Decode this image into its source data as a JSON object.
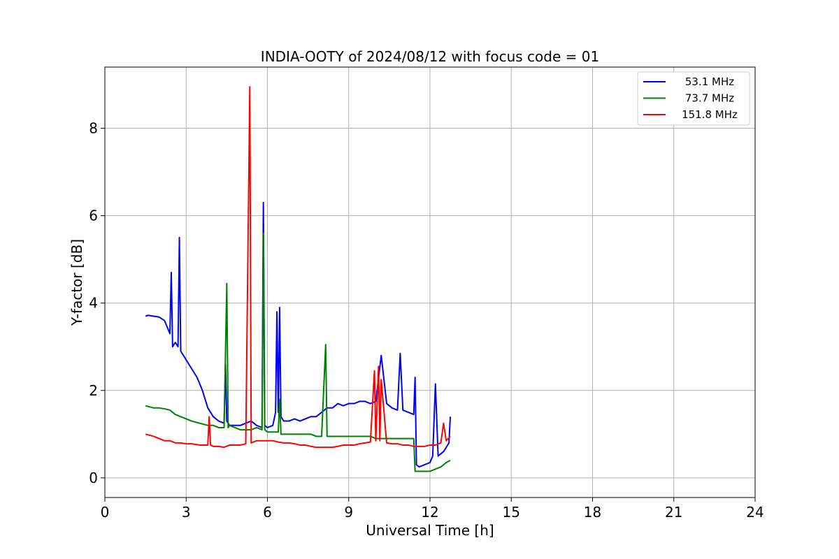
{
  "chart_data": {
    "type": "line",
    "title": "INDIA-OOTY of 2024/08/12 with focus code = 01",
    "xlabel": "Universal Time [h]",
    "ylabel": "Y-factor [dB]",
    "xlim": [
      0,
      24
    ],
    "ylim": [
      -0.45,
      9.4
    ],
    "xticks": [
      0,
      3,
      6,
      9,
      12,
      15,
      18,
      21,
      24
    ],
    "yticks": [
      0,
      2,
      4,
      6,
      8
    ],
    "grid": true,
    "legend_position": "top-right",
    "series": [
      {
        "name": "53.1 MHz",
        "color": "#0000ff",
        "x": [
          1.5,
          1.6,
          1.8,
          2.0,
          2.2,
          2.4,
          2.45,
          2.5,
          2.6,
          2.7,
          2.75,
          2.8,
          3.0,
          3.2,
          3.4,
          3.6,
          3.8,
          4.0,
          4.2,
          4.4,
          4.45,
          4.5,
          4.6,
          4.8,
          5.0,
          5.2,
          5.4,
          5.6,
          5.8,
          5.85,
          5.9,
          6.0,
          6.2,
          6.3,
          6.35,
          6.4,
          6.45,
          6.5,
          6.6,
          6.8,
          7.0,
          7.2,
          7.4,
          7.6,
          7.8,
          8.0,
          8.2,
          8.4,
          8.6,
          8.8,
          9.0,
          9.2,
          9.4,
          9.6,
          9.8,
          10.0,
          10.2,
          10.4,
          10.6,
          10.8,
          10.9,
          11.0,
          11.2,
          11.4,
          11.45,
          11.5,
          11.6,
          11.8,
          12.0,
          12.1,
          12.2,
          12.3,
          12.5,
          12.7,
          12.75
        ],
        "y": [
          3.7,
          3.72,
          3.7,
          3.68,
          3.6,
          3.3,
          4.7,
          3.0,
          3.1,
          3.0,
          5.5,
          2.9,
          2.7,
          2.5,
          2.3,
          2.0,
          1.6,
          1.4,
          1.3,
          1.25,
          2.6,
          1.3,
          1.2,
          1.2,
          1.2,
          1.25,
          1.3,
          1.2,
          1.15,
          6.3,
          1.2,
          1.15,
          1.2,
          1.5,
          3.8,
          1.5,
          3.9,
          1.4,
          1.3,
          1.3,
          1.35,
          1.3,
          1.35,
          1.4,
          1.4,
          1.5,
          1.6,
          1.6,
          1.7,
          1.65,
          1.7,
          1.7,
          1.75,
          1.75,
          1.7,
          1.75,
          2.8,
          1.7,
          1.6,
          1.55,
          2.85,
          1.55,
          1.5,
          1.45,
          2.3,
          0.3,
          0.25,
          0.3,
          0.35,
          0.5,
          2.15,
          0.5,
          0.6,
          0.8,
          1.4
        ]
      },
      {
        "name": "73.7 MHz",
        "color": "#008000",
        "x": [
          1.5,
          1.8,
          2.0,
          2.2,
          2.4,
          2.6,
          2.8,
          3.0,
          3.2,
          3.5,
          3.8,
          4.0,
          4.2,
          4.4,
          4.5,
          4.55,
          4.6,
          4.8,
          5.0,
          5.2,
          5.4,
          5.6,
          5.8,
          5.85,
          5.9,
          6.0,
          6.2,
          6.4,
          6.45,
          6.5,
          6.6,
          6.8,
          7.0,
          7.2,
          7.4,
          7.6,
          7.8,
          8.0,
          8.15,
          8.2,
          8.4,
          8.6,
          8.8,
          9.0,
          9.2,
          9.4,
          9.6,
          9.8,
          10.0,
          10.2,
          10.4,
          10.6,
          10.8,
          11.0,
          11.2,
          11.4,
          11.45,
          11.5,
          11.8,
          12.0,
          12.2,
          12.4,
          12.6,
          12.75
        ],
        "y": [
          1.65,
          1.6,
          1.6,
          1.58,
          1.55,
          1.45,
          1.4,
          1.35,
          1.3,
          1.25,
          1.2,
          1.2,
          1.15,
          1.15,
          4.45,
          1.15,
          1.2,
          1.15,
          1.1,
          1.1,
          1.1,
          1.15,
          1.1,
          5.6,
          1.1,
          1.05,
          1.05,
          1.05,
          1.8,
          1.0,
          1.0,
          1.0,
          1.0,
          1.0,
          1.0,
          1.0,
          0.95,
          0.95,
          3.05,
          0.95,
          0.95,
          0.95,
          0.95,
          0.95,
          0.95,
          0.95,
          0.95,
          0.95,
          0.9,
          0.9,
          0.9,
          0.9,
          0.9,
          0.9,
          0.9,
          0.9,
          0.15,
          0.15,
          0.15,
          0.15,
          0.2,
          0.25,
          0.35,
          0.4
        ]
      },
      {
        "name": "151.8 MHz",
        "color": "#ff0000",
        "x": [
          1.5,
          1.8,
          2.0,
          2.2,
          2.4,
          2.6,
          2.8,
          3.0,
          3.2,
          3.5,
          3.8,
          3.85,
          3.9,
          4.0,
          4.2,
          4.4,
          4.6,
          4.8,
          5.0,
          5.2,
          5.35,
          5.4,
          5.6,
          5.8,
          6.0,
          6.2,
          6.4,
          6.6,
          6.8,
          7.0,
          7.2,
          7.4,
          7.6,
          7.8,
          8.0,
          8.2,
          8.4,
          8.6,
          8.8,
          9.0,
          9.2,
          9.4,
          9.6,
          9.8,
          9.95,
          10.0,
          10.1,
          10.15,
          10.2,
          10.4,
          10.6,
          10.8,
          11.0,
          11.2,
          11.4,
          11.6,
          11.8,
          12.0,
          12.2,
          12.4,
          12.5,
          12.6,
          12.75
        ],
        "y": [
          1.0,
          0.95,
          0.9,
          0.85,
          0.85,
          0.8,
          0.8,
          0.78,
          0.78,
          0.75,
          0.75,
          1.4,
          0.75,
          0.72,
          0.72,
          0.7,
          0.75,
          0.75,
          0.75,
          0.78,
          8.95,
          0.8,
          0.85,
          0.85,
          0.85,
          0.85,
          0.82,
          0.8,
          0.8,
          0.78,
          0.75,
          0.75,
          0.72,
          0.7,
          0.7,
          0.7,
          0.7,
          0.72,
          0.75,
          0.75,
          0.75,
          0.78,
          0.8,
          0.82,
          2.45,
          0.85,
          2.55,
          0.85,
          2.25,
          0.8,
          0.78,
          0.78,
          0.75,
          0.75,
          0.72,
          0.72,
          0.72,
          0.75,
          0.75,
          0.8,
          1.25,
          0.85,
          0.95
        ]
      }
    ]
  }
}
